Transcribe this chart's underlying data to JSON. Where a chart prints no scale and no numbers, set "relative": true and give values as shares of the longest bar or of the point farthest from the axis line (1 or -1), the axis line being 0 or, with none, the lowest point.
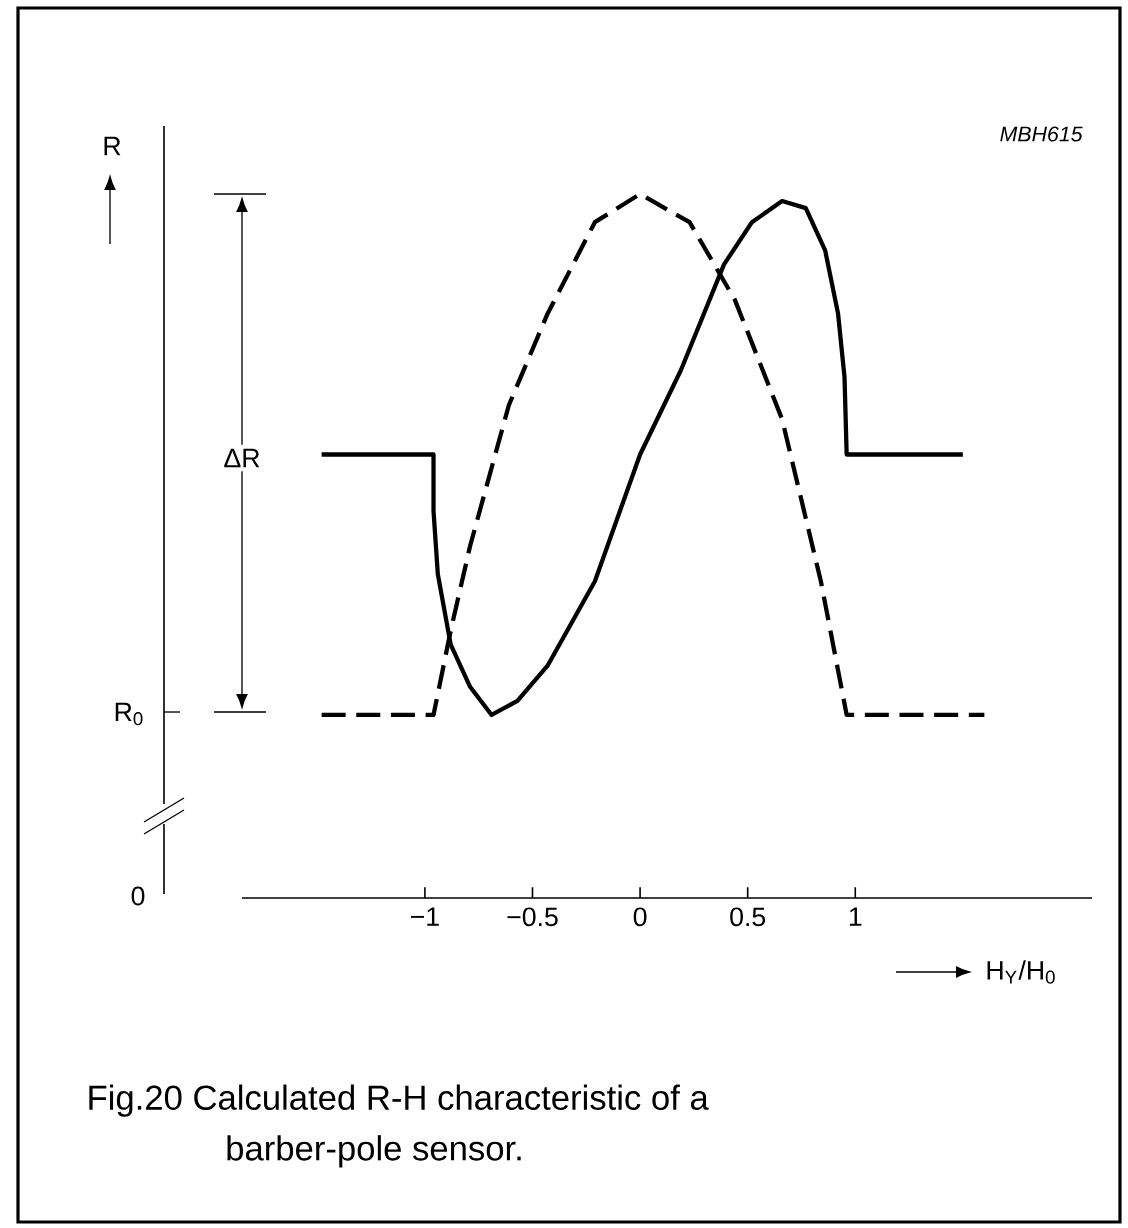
{
  "chart_data": {
    "type": "line",
    "relative": true,
    "xlabel": "H$_{Y}$/H$_{0}$",
    "ylabel": "R",
    "xlim": [
      -1.85,
      2.1
    ],
    "xticks": [
      {
        "value": -1,
        "label": "−1"
      },
      {
        "value": -0.5,
        "label": "−0.5"
      },
      0,
      0.5,
      1
    ],
    "series": [
      {
        "color": "#000000",
        "line_style": "solid",
        "x": [
          -1.48,
          -0.96,
          -0.96,
          -0.94,
          -0.88,
          -0.79,
          -0.69,
          -0.57,
          -0.43,
          -0.21,
          0,
          0.19,
          0.39,
          0.52,
          0.66,
          0.77,
          0.86,
          0.92,
          0.95,
          0.96,
          1.5
        ],
        "values": [
          0.63,
          0.63,
          0.55,
          0.46,
          0.36,
          0.3,
          0.26,
          0.28,
          0.33,
          0.45,
          0.63,
          0.75,
          0.9,
          0.96,
          0.99,
          0.98,
          0.92,
          0.83,
          0.74,
          0.63,
          0.63
        ]
      },
      {
        "color": "#000000",
        "line_style": "dashed",
        "x": [
          -1.48,
          -0.96,
          -0.88,
          -0.79,
          -0.61,
          -0.43,
          -0.21,
          0,
          0.23,
          0.44,
          0.66,
          0.84,
          0.96,
          1.6
        ],
        "values": [
          0.26,
          0.26,
          0.38,
          0.5,
          0.7,
          0.83,
          0.96,
          1,
          0.96,
          0.85,
          0.68,
          0.45,
          0.26,
          0.26
        ]
      }
    ],
    "annotations": [
      "MBH615",
      "R$_{0}$",
      "0",
      "ΔR",
      "Fig.20 Calculated R-H characteristic of a barber-pole sensor."
    ]
  }
}
